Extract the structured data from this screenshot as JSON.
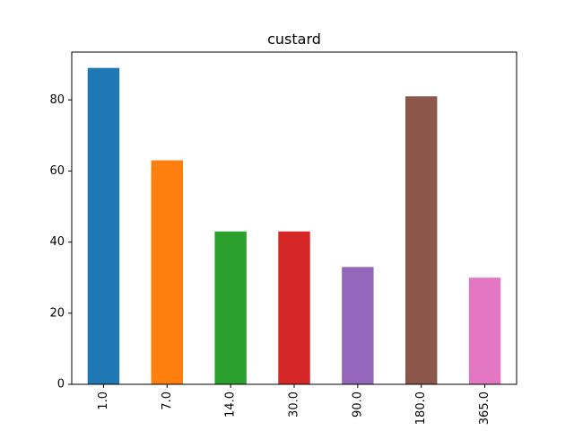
{
  "chart_data": {
    "type": "bar",
    "title": "custard",
    "xlabel": "",
    "ylabel": "",
    "categories": [
      "1.0",
      "7.0",
      "14.0",
      "30.0",
      "90.0",
      "180.0",
      "365.0"
    ],
    "values": [
      89,
      63,
      43,
      43,
      33,
      81,
      30
    ],
    "colors": [
      "#1f77b4",
      "#ff7f0e",
      "#2ca02c",
      "#d62728",
      "#9467bd",
      "#8c564b",
      "#e377c2"
    ],
    "ylim": [
      0,
      93.45
    ],
    "yticks": [
      "0",
      "20",
      "40",
      "60",
      "80"
    ],
    "grid": false,
    "legend": false
  }
}
